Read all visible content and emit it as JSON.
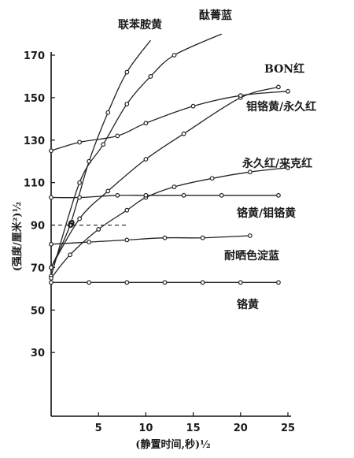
{
  "chart_data": {
    "type": "line",
    "xlabel": "(静置时间,秒)½",
    "ylabel": "(强度/厘米²)½",
    "xlim": [
      0,
      25
    ],
    "ylim": [
      0,
      170
    ],
    "xticks": [
      5,
      10,
      15,
      20,
      25
    ],
    "yticks": [
      30,
      50,
      70,
      90,
      110,
      130,
      150,
      170
    ],
    "angle_label": "θ",
    "series": [
      {
        "name": "联苯胺黄",
        "points": [
          [
            0,
            70
          ],
          [
            2,
            90
          ],
          [
            4,
            120
          ],
          [
            6,
            143
          ],
          [
            8,
            162
          ],
          [
            10.5,
            177
          ]
        ]
      },
      {
        "name": "酞菁蓝",
        "points": [
          [
            0,
            66
          ],
          [
            3,
            110
          ],
          [
            5.5,
            128
          ],
          [
            8,
            147
          ],
          [
            10.5,
            160
          ],
          [
            13,
            170
          ],
          [
            18,
            180
          ]
        ]
      },
      {
        "name": "BON红",
        "points": [
          [
            0,
            70
          ],
          [
            3,
            93
          ],
          [
            6,
            106
          ],
          [
            10,
            121
          ],
          [
            14,
            133
          ],
          [
            20,
            150
          ],
          [
            24,
            155
          ]
        ]
      },
      {
        "name": "钼铬黄/永久红",
        "points": [
          [
            0,
            125
          ],
          [
            3,
            129
          ],
          [
            7,
            132
          ],
          [
            10,
            138
          ],
          [
            15,
            146
          ],
          [
            20,
            151
          ],
          [
            25,
            153
          ]
        ]
      },
      {
        "name": "永久红/来克红",
        "points": [
          [
            0,
            65
          ],
          [
            2,
            76
          ],
          [
            5,
            88
          ],
          [
            8,
            97
          ],
          [
            10,
            103
          ],
          [
            13,
            108
          ],
          [
            17,
            112
          ],
          [
            21,
            115
          ],
          [
            25,
            117
          ]
        ]
      },
      {
        "name": "铬黄/钼铬黄",
        "points": [
          [
            0,
            103
          ],
          [
            3,
            103
          ],
          [
            7,
            104
          ],
          [
            10,
            104
          ],
          [
            14,
            104
          ],
          [
            18,
            104
          ],
          [
            24,
            104
          ]
        ]
      },
      {
        "name": "耐晒色淀蓝",
        "points": [
          [
            0,
            81
          ],
          [
            4,
            82
          ],
          [
            8,
            83
          ],
          [
            12,
            84
          ],
          [
            16,
            84
          ],
          [
            21,
            85
          ]
        ]
      },
      {
        "name": "铬黄",
        "points": [
          [
            0,
            63
          ],
          [
            4,
            63
          ],
          [
            8,
            63
          ],
          [
            12,
            63
          ],
          [
            16,
            63
          ],
          [
            20,
            63
          ],
          [
            24,
            63
          ]
        ]
      }
    ],
    "annotation_dashed_y": 90
  }
}
